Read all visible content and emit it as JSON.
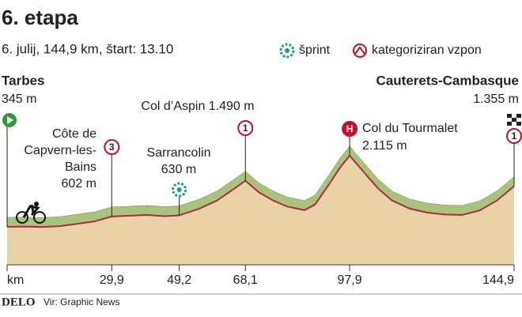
{
  "chart_data": {
    "type": "area",
    "title": "6. etapa",
    "subtitle": "6. julij, 144,9 km, štart: 13.10",
    "legend": [
      "šprint",
      "kategoriziran vzpon"
    ],
    "x": [
      0,
      5,
      10,
      15,
      20,
      25,
      29.9,
      35,
      40,
      45,
      49.2,
      55,
      60,
      65,
      68.1,
      72,
      76,
      80,
      85,
      88,
      92,
      95,
      97.9,
      102,
      106,
      110,
      115,
      120,
      125,
      130,
      135,
      140,
      144.9
    ],
    "y": [
      345,
      350,
      340,
      360,
      420,
      480,
      602,
      620,
      640,
      610,
      630,
      800,
      1000,
      1300,
      1490,
      1200,
      1000,
      850,
      760,
      900,
      1400,
      1800,
      2115,
      1700,
      1300,
      1000,
      800,
      700,
      650,
      640,
      750,
      1000,
      1355
    ],
    "xlim": [
      0,
      144.9
    ],
    "ylim": [
      -600,
      2250
    ],
    "xticks": [
      {
        "value": 0,
        "label": "km"
      },
      {
        "value": 29.9,
        "label": "29,9"
      },
      {
        "value": 49.2,
        "label": "49,2"
      },
      {
        "value": 68.1,
        "label": "68,1"
      },
      {
        "value": 97.9,
        "label": "97,9"
      },
      {
        "value": 144.9,
        "label": "144,9"
      }
    ],
    "annotations": [
      {
        "x": 0,
        "lines": [
          "Tarbes",
          "345 m"
        ]
      },
      {
        "x": 29.9,
        "badge": "3",
        "lines": [
          "Côte de",
          "Capvern-les-",
          "Bains",
          "602 m"
        ]
      },
      {
        "x": 49.2,
        "lines": [
          "Sarrancolin",
          "630 m"
        ]
      },
      {
        "x": 68.1,
        "badge": "1",
        "lines": [
          "Col d’Aspin 1.490 m"
        ]
      },
      {
        "x": 97.9,
        "badge": "H",
        "lines": [
          "Col du Tourmalet",
          "2.115  m"
        ]
      },
      {
        "x": 144.9,
        "badge": "1",
        "lines": [
          "Cauterets-Cambasque",
          "1.355 m"
        ]
      }
    ],
    "source": "Vir: Graphic News",
    "brand": "DELO",
    "colors": {
      "fill": "#e9d3a6",
      "ridge": "#a9c47a",
      "line": "#b0284a",
      "badge": "#c8102e",
      "sprint": "#1f9a9a",
      "start": "#2e9a3e"
    }
  }
}
